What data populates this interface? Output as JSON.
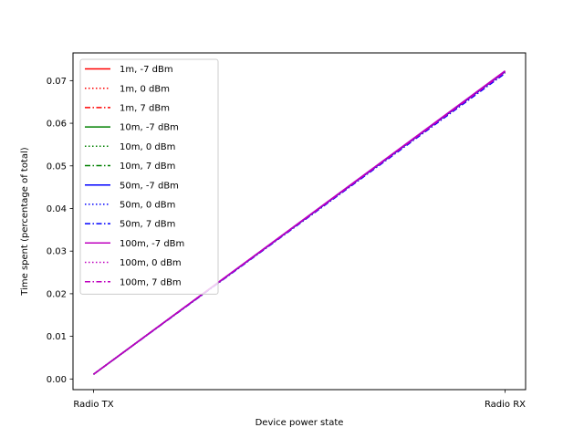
{
  "chart_data": {
    "type": "line",
    "categories": [
      "Radio TX",
      "Radio RX"
    ],
    "xlabel": "Device power state",
    "ylabel": "Time spent (percentage of total)",
    "ylim": [
      -0.0025,
      0.0765
    ],
    "yticks": [
      "0.00",
      "0.01",
      "0.02",
      "0.03",
      "0.04",
      "0.05",
      "0.06",
      "0.07"
    ],
    "grid": false,
    "legend_position": "upper-left",
    "series": [
      {
        "name": "1m, -7 dBm",
        "color": "#ff0000",
        "style": "solid",
        "values": [
          0.0011,
          0.0721
        ]
      },
      {
        "name": "1m, 0 dBm",
        "color": "#ff0000",
        "style": "dotted",
        "values": [
          0.0011,
          0.0721
        ]
      },
      {
        "name": "1m, 7 dBm",
        "color": "#ff0000",
        "style": "dashdot",
        "values": [
          0.0011,
          0.0719
        ]
      },
      {
        "name": "10m, -7 dBm",
        "color": "#008000",
        "style": "solid",
        "values": [
          0.0011,
          0.0721
        ]
      },
      {
        "name": "10m, 0 dBm",
        "color": "#008000",
        "style": "dotted",
        "values": [
          0.0011,
          0.0721
        ]
      },
      {
        "name": "10m, 7 dBm",
        "color": "#008000",
        "style": "dashdot",
        "values": [
          0.0011,
          0.0719
        ]
      },
      {
        "name": "50m, -7 dBm",
        "color": "#0000ff",
        "style": "solid",
        "values": [
          0.0011,
          0.0721
        ]
      },
      {
        "name": "50m, 0 dBm",
        "color": "#0000ff",
        "style": "dotted",
        "values": [
          0.0011,
          0.0721
        ]
      },
      {
        "name": "50m, 7 dBm",
        "color": "#0000ff",
        "style": "dashdot",
        "values": [
          0.0011,
          0.0717
        ]
      },
      {
        "name": "100m, -7 dBm",
        "color": "#bf00bf",
        "style": "solid",
        "values": [
          0.0011,
          0.0723
        ]
      },
      {
        "name": "100m, 0 dBm",
        "color": "#bf00bf",
        "style": "dotted",
        "values": [
          0.0011,
          0.0722
        ]
      },
      {
        "name": "100m, 7 dBm",
        "color": "#bf00bf",
        "style": "dashdot",
        "values": [
          0.0011,
          0.072
        ]
      }
    ]
  }
}
